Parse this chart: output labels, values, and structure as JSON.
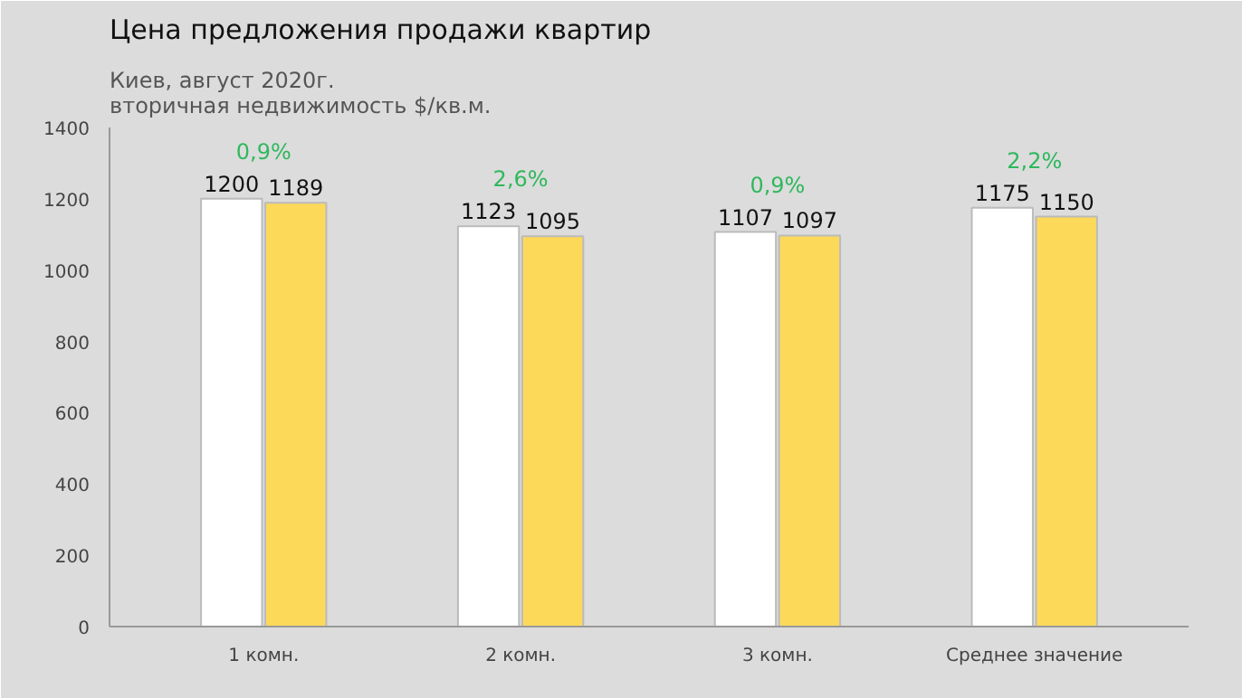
{
  "chart_data": {
    "type": "bar",
    "title": "Цена предложения продажи квартир",
    "subtitle": "Киев, август 2020г.\nвторичная недвижимость $/кв.м.",
    "categories": [
      "1 комн.",
      "2 комн.",
      "3 комн.",
      "Среднее значение"
    ],
    "series": [
      {
        "color": "#ffffff",
        "values": [
          1200,
          1123,
          1107,
          1175
        ]
      },
      {
        "color": "#fdd95a",
        "values": [
          1189,
          1095,
          1097,
          1150
        ]
      }
    ],
    "data_labels": true,
    "annotations": [
      "0,9%",
      "2,6%",
      "0,9%",
      "2,2%"
    ],
    "ylim": [
      0,
      1400
    ],
    "yticks": [
      0,
      200,
      400,
      600,
      800,
      1000,
      1200,
      1400
    ],
    "grid": false
  }
}
